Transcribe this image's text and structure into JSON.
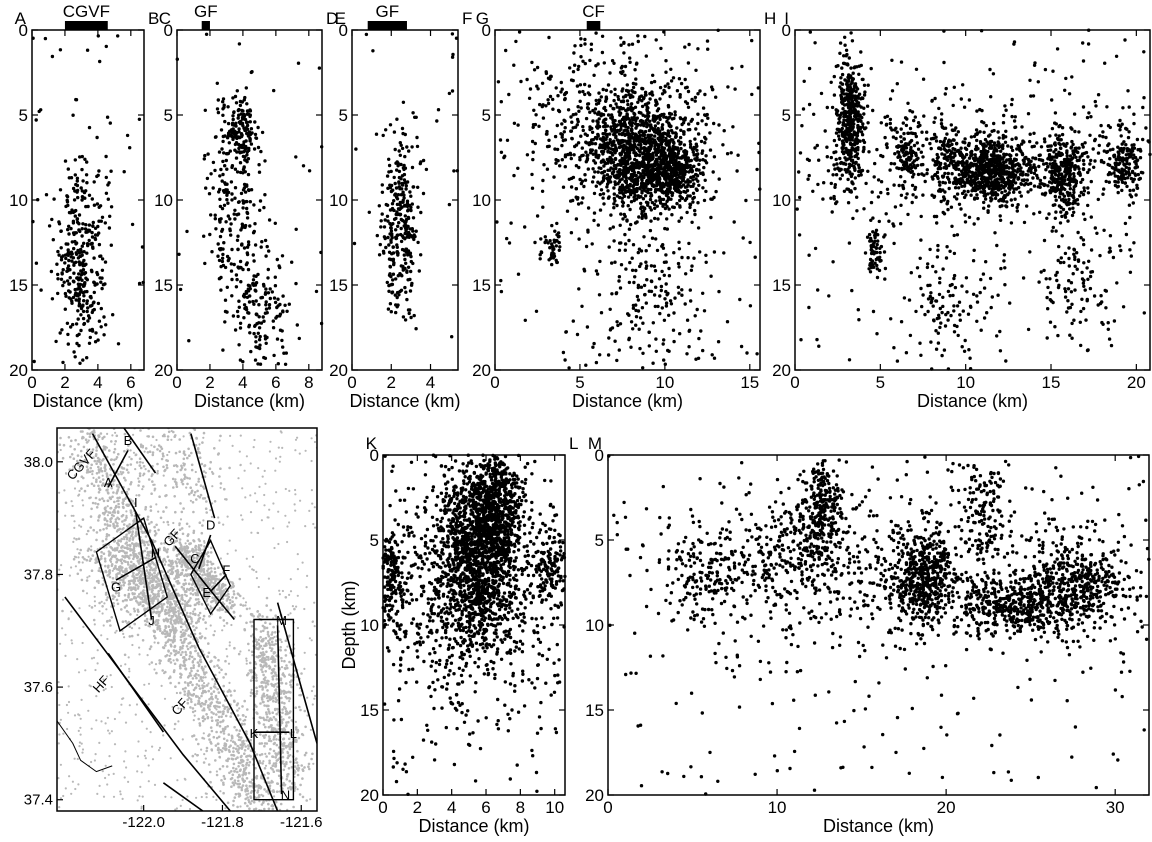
{
  "colors": {
    "quake": "#000000",
    "map_quake": "#b8b8b8",
    "ink": "#000000",
    "background": "#ffffff"
  },
  "map": {
    "lon_ticks": [
      "-122.0",
      "-121.8",
      "-121.6"
    ],
    "lat_ticks": [
      "38.0",
      "37.8",
      "37.6",
      "37.4"
    ],
    "fault_labels": [
      {
        "text": "CGVF",
        "lon": -122.15,
        "lat": 37.99
      },
      {
        "text": "GF",
        "lon": -121.92,
        "lat": 37.86
      },
      {
        "text": "CF",
        "lon": -121.9,
        "lat": 37.56
      },
      {
        "text": "HF",
        "lon": -122.1,
        "lat": 37.6
      }
    ],
    "profile_labels": [
      {
        "text": "A",
        "lon": -122.09,
        "lat": 37.955
      },
      {
        "text": "B",
        "lon": -122.04,
        "lat": 38.03
      },
      {
        "text": "C",
        "lon": -121.87,
        "lat": 37.82
      },
      {
        "text": "D",
        "lon": -121.83,
        "lat": 37.88
      },
      {
        "text": "E",
        "lon": -121.84,
        "lat": 37.76
      },
      {
        "text": "F",
        "lon": -121.79,
        "lat": 37.8
      },
      {
        "text": "G",
        "lon": -122.07,
        "lat": 37.77
      },
      {
        "text": "H",
        "lon": -121.97,
        "lat": 37.83
      },
      {
        "text": "I",
        "lon": -122.02,
        "lat": 37.92
      },
      {
        "text": "J",
        "lon": -121.98,
        "lat": 37.71
      },
      {
        "text": "K",
        "lon": -121.72,
        "lat": 37.51
      },
      {
        "text": "L",
        "lon": -121.62,
        "lat": 37.51
      },
      {
        "text": "M",
        "lon": -121.65,
        "lat": 37.71
      },
      {
        "text": "N",
        "lon": -121.64,
        "lat": 37.4
      }
    ],
    "xlim": [
      -122.22,
      -121.56
    ],
    "ylim": [
      37.38,
      38.06
    ]
  },
  "chart_data": [
    {
      "type": "scatter",
      "panel": "A-B",
      "left_label": "A",
      "right_label": "B",
      "fault_label": "CGVF",
      "fault_bar": [
        2.0,
        4.6
      ],
      "xlabel": "Distance (km)",
      "ylabel": "",
      "xlim": [
        0,
        6.8
      ],
      "ylim": [
        20,
        0
      ],
      "xticks": [
        0,
        2,
        4,
        6
      ],
      "yticks": [
        0,
        5,
        10,
        15,
        20
      ],
      "clusters": [
        {
          "x": 3.0,
          "y": 14.5,
          "sx": 0.7,
          "sy": 2.2,
          "n": 230
        },
        {
          "x": 3.0,
          "y": 11.5,
          "sx": 0.8,
          "sy": 2.5,
          "n": 90
        }
      ],
      "background_count": 60
    },
    {
      "type": "scatter",
      "panel": "C-D",
      "left_label": "C",
      "right_label": "D",
      "fault_label": "GF",
      "fault_bar": [
        1.5,
        2.0
      ],
      "xlabel": "Distance (km)",
      "ylabel": "",
      "xlim": [
        0,
        8.8
      ],
      "ylim": [
        20,
        0
      ],
      "xticks": [
        0,
        2,
        4,
        6,
        8
      ],
      "yticks": [
        0,
        5,
        10,
        15,
        20
      ],
      "clusters": [
        {
          "x": 3.8,
          "y": 6.0,
          "sx": 0.6,
          "sy": 1.0,
          "n": 170
        },
        {
          "x": 3.4,
          "y": 11.5,
          "sx": 0.9,
          "sy": 2.6,
          "n": 190
        },
        {
          "x": 5.2,
          "y": 16.5,
          "sx": 0.9,
          "sy": 1.8,
          "n": 130
        }
      ],
      "background_count": 40
    },
    {
      "type": "scatter",
      "panel": "E-F",
      "left_label": "E",
      "right_label": "F",
      "fault_label": "GF",
      "fault_bar": [
        0.8,
        2.8
      ],
      "xlabel": "Distance (km)",
      "ylabel": "",
      "xlim": [
        0,
        5.4
      ],
      "ylim": [
        20,
        0
      ],
      "xticks": [
        0,
        2,
        4
      ],
      "yticks": [
        0,
        5,
        10,
        15,
        20
      ],
      "clusters": [
        {
          "x": 2.5,
          "y": 12.0,
          "sx": 0.45,
          "sy": 2.4,
          "n": 260
        },
        {
          "x": 2.5,
          "y": 8.0,
          "sx": 0.6,
          "sy": 2.0,
          "n": 40
        }
      ],
      "background_count": 25
    },
    {
      "type": "scatter",
      "panel": "G-H",
      "left_label": "G",
      "right_label": "H",
      "fault_label": "CF",
      "fault_bar": [
        5.4,
        6.2
      ],
      "xlabel": "Distance (km)",
      "ylabel": "",
      "xlim": [
        0,
        15.6
      ],
      "ylim": [
        20,
        0
      ],
      "xticks": [
        0,
        5,
        10,
        15
      ],
      "yticks": [
        0,
        5,
        10,
        15,
        20
      ],
      "clusters": [
        {
          "x": 8.5,
          "y": 7.5,
          "sx": 1.7,
          "sy": 1.8,
          "n": 1200
        },
        {
          "x": 10.5,
          "y": 8.3,
          "sx": 0.8,
          "sy": 1.0,
          "n": 300
        },
        {
          "x": 3.4,
          "y": 12.8,
          "sx": 0.35,
          "sy": 0.55,
          "n": 45
        },
        {
          "x": 9.3,
          "y": 15.8,
          "sx": 1.8,
          "sy": 2.2,
          "n": 170
        },
        {
          "x": 7.0,
          "y": 5.0,
          "sx": 3.0,
          "sy": 2.5,
          "n": 400
        }
      ],
      "background_count": 140
    },
    {
      "type": "scatter",
      "panel": "I-J",
      "left_label": "I",
      "right_label": "J",
      "fault_label": "",
      "fault_bar": [],
      "xlabel": "Distance (km)",
      "ylabel": "",
      "xlim": [
        0,
        20.8
      ],
      "ylim": [
        20,
        0
      ],
      "xticks": [
        0,
        5,
        10,
        15,
        20
      ],
      "yticks": [
        0,
        5,
        10,
        15,
        20
      ],
      "clusters": [
        {
          "x": 3.2,
          "y": 5.5,
          "sx": 0.4,
          "sy": 1.9,
          "n": 420
        },
        {
          "x": 6.5,
          "y": 7.3,
          "sx": 0.4,
          "sy": 1.0,
          "n": 110
        },
        {
          "x": 8.9,
          "y": 7.8,
          "sx": 0.5,
          "sy": 1.1,
          "n": 110
        },
        {
          "x": 11.5,
          "y": 8.3,
          "sx": 1.2,
          "sy": 0.9,
          "n": 650
        },
        {
          "x": 15.8,
          "y": 8.4,
          "sx": 0.6,
          "sy": 1.2,
          "n": 300
        },
        {
          "x": 19.2,
          "y": 7.8,
          "sx": 0.6,
          "sy": 0.9,
          "n": 170
        },
        {
          "x": 4.6,
          "y": 13.0,
          "sx": 0.25,
          "sy": 0.6,
          "n": 60
        },
        {
          "x": 9.0,
          "y": 16.0,
          "sx": 1.6,
          "sy": 1.6,
          "n": 110
        },
        {
          "x": 16.8,
          "y": 15.2,
          "sx": 1.3,
          "sy": 1.8,
          "n": 100
        },
        {
          "x": 10.0,
          "y": 7.5,
          "sx": 6.0,
          "sy": 2.5,
          "n": 400
        }
      ],
      "background_count": 180
    },
    {
      "type": "scatter",
      "panel": "K-L",
      "left_label": "K",
      "right_label": "L",
      "fault_label": "",
      "fault_bar": [],
      "xlabel": "Distance (km)",
      "ylabel": "Depth (km)",
      "xlim": [
        0,
        10.6
      ],
      "ylim": [
        20,
        0
      ],
      "xticks": [
        0,
        2,
        4,
        6,
        8,
        10
      ],
      "yticks": [
        0,
        5,
        10,
        15,
        20
      ],
      "clusters": [
        {
          "x": 5.5,
          "y": 5.5,
          "sx": 1.2,
          "sy": 2.6,
          "n": 1300
        },
        {
          "x": 6.6,
          "y": 3.0,
          "sx": 0.8,
          "sy": 1.5,
          "n": 450
        },
        {
          "x": 0.4,
          "y": 7.2,
          "sx": 0.35,
          "sy": 1.3,
          "n": 170
        },
        {
          "x": 9.8,
          "y": 6.6,
          "sx": 0.5,
          "sy": 1.0,
          "n": 120
        },
        {
          "x": 4.8,
          "y": 8.5,
          "sx": 3.2,
          "sy": 3.3,
          "n": 750
        }
      ],
      "background_count": 140
    },
    {
      "type": "scatter",
      "panel": "M-N",
      "left_label": "M",
      "right_label": "",
      "fault_label": "",
      "fault_bar": [],
      "xlabel": "Distance (km)",
      "ylabel": "",
      "xlim": [
        0,
        32
      ],
      "ylim": [
        20,
        0
      ],
      "xticks": [
        0,
        10,
        20,
        30
      ],
      "yticks": [
        0,
        5,
        10,
        15,
        20
      ],
      "clusters": [
        {
          "x": 12.7,
          "y": 3.2,
          "sx": 0.7,
          "sy": 1.5,
          "n": 250
        },
        {
          "x": 18.6,
          "y": 7.2,
          "sx": 0.9,
          "sy": 1.3,
          "n": 450
        },
        {
          "x": 24.5,
          "y": 8.8,
          "sx": 2.4,
          "sy": 0.9,
          "n": 520
        },
        {
          "x": 28.0,
          "y": 7.2,
          "sx": 1.5,
          "sy": 1.3,
          "n": 320
        },
        {
          "x": 5.8,
          "y": 7.2,
          "sx": 1.4,
          "sy": 1.2,
          "n": 140
        },
        {
          "x": 10.5,
          "y": 5.8,
          "sx": 2.0,
          "sy": 1.5,
          "n": 200
        },
        {
          "x": 22.2,
          "y": 3.5,
          "sx": 0.8,
          "sy": 1.5,
          "n": 130
        },
        {
          "x": 16.0,
          "y": 7.0,
          "sx": 7.5,
          "sy": 2.6,
          "n": 600
        }
      ],
      "background_count": 180
    }
  ]
}
